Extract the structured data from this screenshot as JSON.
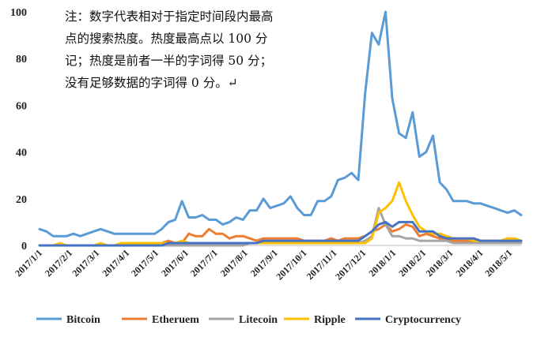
{
  "chart_data": {
    "type": "line",
    "title": "",
    "xlabel": "",
    "ylabel": "",
    "ylim": [
      0,
      100
    ],
    "yticks": [
      0,
      20,
      40,
      60,
      80,
      100
    ],
    "grid": false,
    "legend_position": "bottom",
    "note_lines": [
      "注：数字代表相对于指定时间段内最高",
      "点的搜索热度。热度最高点以 100 分",
      "记；热度是前者一半的字词得 50 分；",
      "没有足够数据的字词得 0 分。↵"
    ],
    "x": [
      "2017/1/1",
      "2017/1/8",
      "2017/1/15",
      "2017/1/22",
      "2017/1/29",
      "2017/2/5",
      "2017/2/12",
      "2017/2/19",
      "2017/2/26",
      "2017/3/5",
      "2017/3/12",
      "2017/3/19",
      "2017/3/26",
      "2017/4/2",
      "2017/4/9",
      "2017/4/16",
      "2017/4/23",
      "2017/4/30",
      "2017/5/7",
      "2017/5/14",
      "2017/5/21",
      "2017/5/28",
      "2017/6/4",
      "2017/6/11",
      "2017/6/18",
      "2017/6/25",
      "2017/7/2",
      "2017/7/9",
      "2017/7/16",
      "2017/7/23",
      "2017/7/30",
      "2017/8/6",
      "2017/8/13",
      "2017/8/20",
      "2017/8/27",
      "2017/9/3",
      "2017/9/10",
      "2017/9/17",
      "2017/9/24",
      "2017/10/1",
      "2017/10/8",
      "2017/10/15",
      "2017/10/22",
      "2017/10/29",
      "2017/11/5",
      "2017/11/12",
      "2017/11/19",
      "2017/11/26",
      "2017/12/3",
      "2017/12/10",
      "2017/12/17",
      "2017/12/24",
      "2017/12/31",
      "2018/1/7",
      "2018/1/14",
      "2018/1/21",
      "2018/1/28",
      "2018/2/4",
      "2018/2/11",
      "2018/2/18",
      "2018/2/25",
      "2018/3/4",
      "2018/3/11",
      "2018/3/18",
      "2018/3/25",
      "2018/4/1",
      "2018/4/8",
      "2018/4/15",
      "2018/4/22",
      "2018/4/29",
      "2018/5/6",
      "2018/5/13"
    ],
    "tick_labels": [
      "2017/1/1",
      "2017/2/1",
      "2017/3/1",
      "2017/4/1",
      "2017/5/1",
      "2017/6/1",
      "2017/7/1",
      "2017/8/1",
      "2017/9/1",
      "2017/10/1",
      "2017/11/1",
      "2017/12/1",
      "2018/1/1",
      "2018/2/1",
      "2018/3/1",
      "2018/4/1",
      "2018/5/1"
    ],
    "series": [
      {
        "name": "Bitcoin",
        "color": "#5B9BD5",
        "values": [
          7,
          6,
          4,
          4,
          4,
          5,
          4,
          5,
          6,
          7,
          6,
          5,
          5,
          5,
          5,
          5,
          5,
          5,
          7,
          10,
          11,
          19,
          12,
          12,
          13,
          11,
          11,
          9,
          10,
          12,
          11,
          15,
          15,
          20,
          16,
          17,
          18,
          21,
          16,
          13,
          13,
          19,
          19,
          21,
          28,
          29,
          31,
          28,
          65,
          91,
          86,
          100,
          63,
          48,
          46,
          57,
          38,
          40,
          47,
          27,
          24,
          19,
          19,
          19,
          18,
          18,
          17,
          16,
          15,
          14,
          15,
          13
        ]
      },
      {
        "name": "Etheruem",
        "color": "#ED7D31",
        "values": [
          0,
          0,
          0,
          0,
          0,
          0,
          0,
          0,
          0,
          0,
          0,
          0,
          0,
          0,
          0,
          0,
          0,
          0,
          1,
          2,
          1,
          1,
          5,
          4,
          4,
          7,
          5,
          5,
          3,
          4,
          4,
          3,
          2,
          3,
          3,
          3,
          3,
          3,
          3,
          2,
          2,
          2,
          2,
          3,
          2,
          3,
          3,
          3,
          4,
          6,
          7,
          9,
          6,
          7,
          9,
          8,
          4,
          5,
          4,
          3,
          3,
          2,
          2,
          2,
          2,
          2,
          2,
          2,
          2,
          2,
          2,
          2
        ]
      },
      {
        "name": "Litecoin",
        "color": "#A5A5A5",
        "values": [
          0,
          0,
          0,
          0,
          0,
          0,
          0,
          0,
          0,
          0,
          0,
          0,
          0,
          0,
          0,
          0,
          0,
          0,
          0,
          0,
          0,
          0,
          0,
          0,
          0,
          0,
          0,
          0,
          0,
          0,
          0,
          1,
          1,
          1,
          1,
          1,
          1,
          1,
          1,
          1,
          1,
          1,
          1,
          1,
          1,
          1,
          1,
          1,
          2,
          4,
          16,
          9,
          4,
          4,
          3,
          3,
          2,
          2,
          2,
          2,
          2,
          1,
          1,
          1,
          1,
          1,
          1,
          1,
          1,
          1,
          1,
          1
        ]
      },
      {
        "name": "Ripple",
        "color": "#FFC000",
        "values": [
          0,
          0,
          0,
          1,
          0,
          0,
          0,
          0,
          0,
          1,
          0,
          0,
          1,
          1,
          1,
          1,
          1,
          1,
          1,
          1,
          1,
          2,
          1,
          1,
          1,
          1,
          1,
          1,
          1,
          1,
          1,
          1,
          1,
          1,
          1,
          1,
          1,
          1,
          1,
          1,
          1,
          1,
          1,
          1,
          1,
          1,
          1,
          1,
          1,
          3,
          14,
          16,
          19,
          27,
          19,
          13,
          8,
          6,
          5,
          5,
          4,
          3,
          3,
          3,
          2,
          2,
          2,
          2,
          2,
          3,
          3,
          2
        ]
      },
      {
        "name": "Cryptocurrency",
        "color": "#4472C4",
        "values": [
          0,
          0,
          0,
          0,
          0,
          0,
          0,
          0,
          0,
          0,
          0,
          0,
          0,
          0,
          0,
          0,
          0,
          0,
          0,
          1,
          1,
          1,
          1,
          1,
          1,
          1,
          1,
          1,
          1,
          1,
          1,
          1,
          1,
          2,
          2,
          2,
          2,
          2,
          2,
          2,
          2,
          2,
          2,
          2,
          2,
          2,
          2,
          2,
          4,
          6,
          9,
          10,
          8,
          10,
          10,
          10,
          6,
          6,
          6,
          4,
          3,
          3,
          3,
          3,
          3,
          2,
          2,
          2,
          2,
          2,
          2,
          2
        ]
      }
    ]
  }
}
